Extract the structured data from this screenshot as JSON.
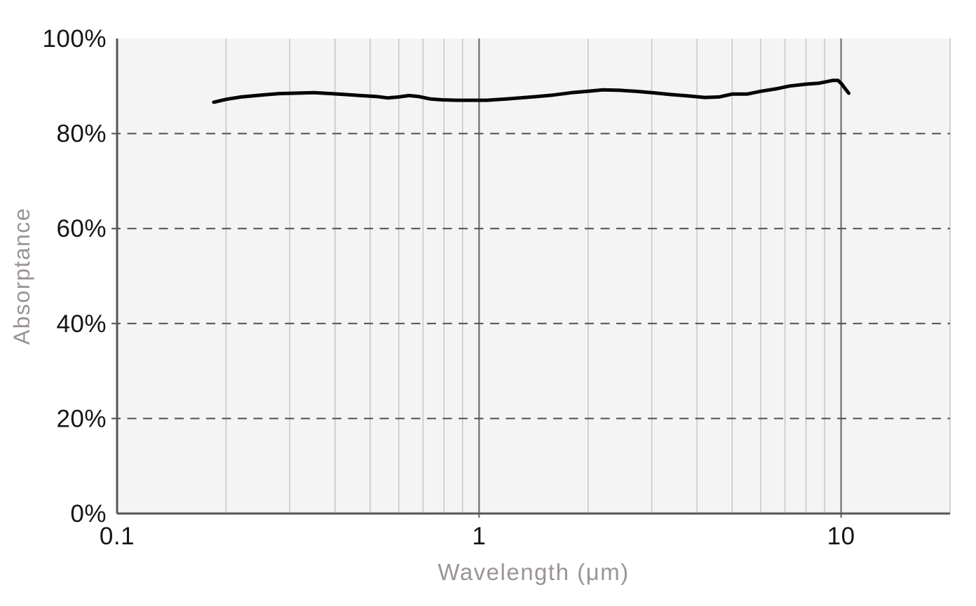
{
  "chart_data": {
    "type": "line",
    "title": "",
    "xlabel": "Wavelength (μm)",
    "ylabel": "Absorptance",
    "x_scale": "log",
    "x_range": [
      0.1,
      20
    ],
    "y_range": [
      0,
      100
    ],
    "grid": "on",
    "legend": "none",
    "x_ticks": [
      {
        "value": 0.1,
        "label": "0.1"
      },
      {
        "value": 1,
        "label": "1"
      },
      {
        "value": 10,
        "label": "10"
      }
    ],
    "y_ticks": [
      {
        "value": 0,
        "label": "0%"
      },
      {
        "value": 20,
        "label": "20%"
      },
      {
        "value": 40,
        "label": "40%"
      },
      {
        "value": 60,
        "label": "60%"
      },
      {
        "value": 80,
        "label": "80%"
      },
      {
        "value": 100,
        "label": "100%"
      }
    ],
    "minor_gridlines_x": [
      0.2,
      0.3,
      0.4,
      0.5,
      0.6,
      0.7,
      0.8,
      0.9,
      2,
      3,
      4,
      5,
      6,
      7,
      8,
      9,
      20
    ],
    "major_gridlines_x": [
      1,
      10
    ],
    "dashed_gridlines_y": [
      20,
      40,
      60,
      80
    ],
    "series": [
      {
        "name": "absorptance",
        "color": "#050505",
        "points": [
          [
            0.185,
            86.6
          ],
          [
            0.2,
            87.2
          ],
          [
            0.22,
            87.7
          ],
          [
            0.25,
            88.1
          ],
          [
            0.28,
            88.4
          ],
          [
            0.31,
            88.5
          ],
          [
            0.35,
            88.6
          ],
          [
            0.39,
            88.4
          ],
          [
            0.43,
            88.2
          ],
          [
            0.47,
            88.0
          ],
          [
            0.52,
            87.8
          ],
          [
            0.56,
            87.5
          ],
          [
            0.6,
            87.7
          ],
          [
            0.64,
            88.0
          ],
          [
            0.68,
            87.8
          ],
          [
            0.73,
            87.3
          ],
          [
            0.79,
            87.1
          ],
          [
            0.87,
            87.0
          ],
          [
            0.95,
            87.0
          ],
          [
            1.05,
            87.0
          ],
          [
            1.2,
            87.3
          ],
          [
            1.4,
            87.7
          ],
          [
            1.6,
            88.1
          ],
          [
            1.8,
            88.6
          ],
          [
            2.0,
            88.9
          ],
          [
            2.2,
            89.2
          ],
          [
            2.45,
            89.1
          ],
          [
            2.7,
            88.9
          ],
          [
            3.0,
            88.6
          ],
          [
            3.4,
            88.2
          ],
          [
            3.8,
            87.9
          ],
          [
            4.2,
            87.6
          ],
          [
            4.6,
            87.7
          ],
          [
            5.0,
            88.3
          ],
          [
            5.5,
            88.3
          ],
          [
            6.0,
            88.9
          ],
          [
            6.6,
            89.4
          ],
          [
            7.2,
            90.0
          ],
          [
            8.0,
            90.4
          ],
          [
            8.7,
            90.6
          ],
          [
            9.1,
            90.9
          ],
          [
            9.5,
            91.2
          ],
          [
            9.8,
            91.2
          ],
          [
            10.05,
            90.4
          ],
          [
            10.25,
            89.5
          ],
          [
            10.5,
            88.5
          ]
        ]
      }
    ]
  },
  "colors": {
    "page_background": "#ffffff",
    "plot_background": "#f5f4f5",
    "minor_gridline": "#c2c2c4",
    "major_gridline": "#6e6e72",
    "dashed_gridline": "#4e4e52",
    "axis_line": "#55565a",
    "tick_label": "#151515",
    "axis_title": "#9a949a",
    "series_line": "#050505"
  }
}
